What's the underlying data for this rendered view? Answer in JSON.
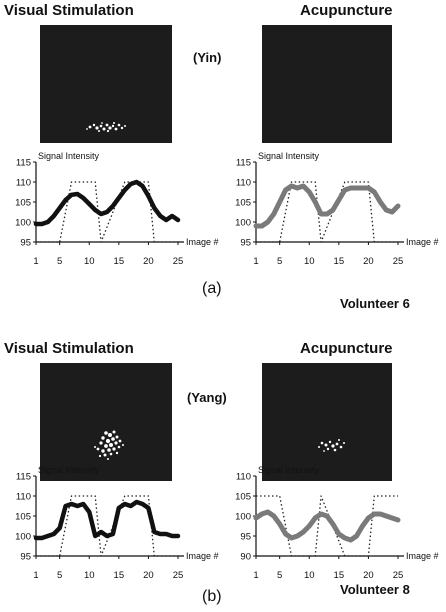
{
  "panels": [
    {
      "label": "(a)",
      "condition": "(Yin)",
      "volunteer": "Volunteer 6",
      "left_title": "Visual  Stimulation",
      "right_title": "Acupuncture"
    },
    {
      "label": "(b)",
      "condition": "(Yang)",
      "volunteer": "Volunteer 8",
      "left_title": "Visual  Stimulation",
      "right_title": "Acupuncture"
    }
  ],
  "chart_data": [
    {
      "type": "line",
      "panel": "(a)",
      "subplot": "Visual Stimulation",
      "ylabel": "Signal Intensity",
      "xlabel": "Image #",
      "ylim": [
        95,
        115
      ],
      "yticks": [
        95,
        100,
        105,
        110,
        115
      ],
      "xlim": [
        1,
        25
      ],
      "xticks": [
        1,
        5,
        10,
        15,
        20,
        25
      ],
      "series": [
        {
          "style": "thick-black",
          "x": [
            1,
            2,
            3,
            4,
            5,
            6,
            7,
            8,
            9,
            10,
            11,
            12,
            13,
            14,
            15,
            16,
            17,
            18,
            19,
            20,
            21,
            22,
            23,
            24,
            25
          ],
          "y": [
            99.5,
            99.5,
            100,
            101.5,
            103.5,
            105.5,
            106.8,
            107,
            106,
            104.5,
            103,
            102,
            102.5,
            104,
            106,
            108,
            109.5,
            110,
            109,
            106.5,
            103.5,
            101.5,
            100.5,
            101.5,
            100.5
          ]
        },
        {
          "style": "dotted-square-wave",
          "x": [
            1,
            4,
            5,
            7,
            11,
            12,
            16,
            20,
            21,
            25
          ],
          "y": [
            95,
            95,
            95,
            110,
            110,
            95,
            110,
            110,
            95,
            95
          ]
        }
      ]
    },
    {
      "type": "line",
      "panel": "(a)",
      "subplot": "Acupuncture",
      "ylabel": "Signal Intensity",
      "xlabel": "Image #",
      "ylim": [
        95,
        115
      ],
      "yticks": [
        95,
        100,
        105,
        110,
        115
      ],
      "xlim": [
        1,
        25
      ],
      "xticks": [
        1,
        5,
        10,
        15,
        20,
        25
      ],
      "series": [
        {
          "style": "thick-gray",
          "x": [
            1,
            2,
            3,
            4,
            5,
            6,
            7,
            8,
            9,
            10,
            11,
            12,
            13,
            14,
            15,
            16,
            17,
            18,
            19,
            20,
            21,
            22,
            23,
            24,
            25
          ],
          "y": [
            99,
            99,
            100,
            102,
            105,
            108,
            109,
            108.5,
            109,
            107.5,
            105,
            102,
            102,
            103,
            105.5,
            108,
            108.5,
            108.5,
            108.5,
            108.5,
            107.5,
            105,
            103,
            102.5,
            104
          ]
        },
        {
          "style": "dotted-square-wave",
          "x": [
            1,
            4,
            5,
            7,
            11,
            12,
            16,
            20,
            21,
            25
          ],
          "y": [
            95,
            95,
            95,
            110,
            110,
            95,
            110,
            110,
            95,
            95
          ]
        }
      ]
    },
    {
      "type": "line",
      "panel": "(b)",
      "subplot": "Visual Stimulation",
      "ylabel": "Signal Intensity",
      "xlabel": "Image #",
      "ylim": [
        95,
        115
      ],
      "yticks": [
        95,
        100,
        105,
        110,
        115
      ],
      "xlim": [
        1,
        25
      ],
      "xticks": [
        1,
        5,
        10,
        15,
        20,
        25
      ],
      "series": [
        {
          "style": "thick-black",
          "x": [
            1,
            2,
            3,
            4,
            5,
            6,
            7,
            8,
            9,
            10,
            11,
            12,
            13,
            14,
            15,
            16,
            17,
            18,
            19,
            20,
            21,
            22,
            23,
            24,
            25
          ],
          "y": [
            99.5,
            99.5,
            100,
            100.5,
            102,
            107.5,
            108,
            107.5,
            108,
            106,
            100,
            101,
            100,
            100.5,
            107,
            108,
            107.5,
            108.5,
            108,
            107,
            101,
            100.5,
            100.5,
            100,
            100
          ]
        },
        {
          "style": "dotted-square-wave",
          "x": [
            1,
            4,
            5,
            7,
            11,
            12,
            16,
            20,
            21,
            25
          ],
          "y": [
            95,
            95,
            95,
            110,
            110,
            95,
            110,
            110,
            95,
            95
          ]
        }
      ]
    },
    {
      "type": "line",
      "panel": "(b)",
      "subplot": "Acupuncture",
      "ylabel": "Signal Intensity",
      "xlabel": "Image #",
      "ylim": [
        90,
        110
      ],
      "yticks": [
        90,
        95,
        100,
        105,
        110
      ],
      "xlim": [
        1,
        25
      ],
      "xticks": [
        1,
        5,
        10,
        15,
        20,
        25
      ],
      "series": [
        {
          "style": "thick-gray",
          "x": [
            1,
            2,
            3,
            4,
            5,
            6,
            7,
            8,
            9,
            10,
            11,
            12,
            13,
            14,
            15,
            16,
            17,
            18,
            19,
            20,
            21,
            22,
            23,
            24,
            25
          ],
          "y": [
            99.5,
            100.5,
            101,
            100,
            98,
            95.5,
            94.5,
            95,
            96,
            97.5,
            99.5,
            100.5,
            100,
            98,
            95.5,
            94.5,
            94,
            95,
            97.5,
            99.5,
            100.5,
            100.5,
            100,
            99.5,
            99
          ]
        },
        {
          "style": "dotted-square-wave",
          "x": [
            1,
            4,
            5,
            7,
            11,
            12,
            16,
            20,
            21,
            25
          ],
          "y": [
            105,
            105,
            105,
            90,
            90,
            105,
            90,
            90,
            105,
            105
          ]
        }
      ]
    }
  ]
}
